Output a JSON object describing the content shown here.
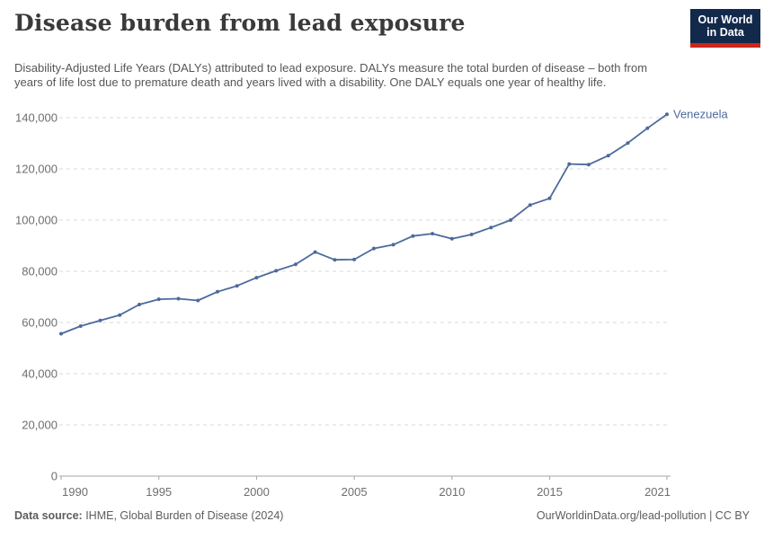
{
  "header": {
    "title": "Disease burden from lead exposure",
    "subtitle": "Disability-Adjusted Life Years (DALYs) attributed to lead exposure. DALYs measure the total burden of disease – both from years of life lost due to premature death and years lived with a disability. One DALY equals one year of healthy life.",
    "logo": {
      "line1": "Our World",
      "line2": "in Data"
    }
  },
  "chart_data": {
    "type": "line",
    "title": "Disease burden from lead exposure",
    "xlabel": "",
    "ylabel": "",
    "xlim": [
      1990,
      2021
    ],
    "ylim": [
      0,
      140000
    ],
    "grid": "horizontal-dashed",
    "legend_position": "end-of-line-label",
    "x_ticks": [
      1990,
      1995,
      2000,
      2005,
      2010,
      2015,
      2021
    ],
    "y_ticks": [
      0,
      20000,
      40000,
      60000,
      80000,
      100000,
      120000,
      140000
    ],
    "y_tick_labels": [
      "0",
      "20,000",
      "40,000",
      "60,000",
      "80,000",
      "100,000",
      "120,000",
      "140,000"
    ],
    "series": [
      {
        "name": "Venezuela",
        "color": "#4c6a9c",
        "x": [
          1990,
          1991,
          1992,
          1993,
          1994,
          1995,
          1996,
          1997,
          1998,
          1999,
          2000,
          2001,
          2002,
          2003,
          2004,
          2005,
          2006,
          2007,
          2008,
          2009,
          2010,
          2011,
          2012,
          2013,
          2014,
          2015,
          2016,
          2017,
          2018,
          2019,
          2020,
          2021
        ],
        "values": [
          55600,
          58600,
          60800,
          62900,
          67000,
          69100,
          69300,
          68600,
          72000,
          74300,
          77500,
          80200,
          82700,
          87500,
          84500,
          84600,
          88900,
          90400,
          93800,
          94700,
          92700,
          94400,
          97100,
          100000,
          105900,
          108500,
          121900,
          121700,
          125200,
          130100,
          135900,
          141300
        ]
      }
    ]
  },
  "footer": {
    "source_label": "Data source:",
    "source_text": " IHME, Global Burden of Disease (2024)",
    "link_text": "OurWorldinData.org/lead-pollution | CC BY"
  },
  "colors": {
    "line": "#4c6a9c",
    "grid": "#dadada",
    "axis": "#a5a5a5",
    "tick_text": "#6e6e6e",
    "logo_bg": "#12294b",
    "logo_red": "#ce261b"
  }
}
